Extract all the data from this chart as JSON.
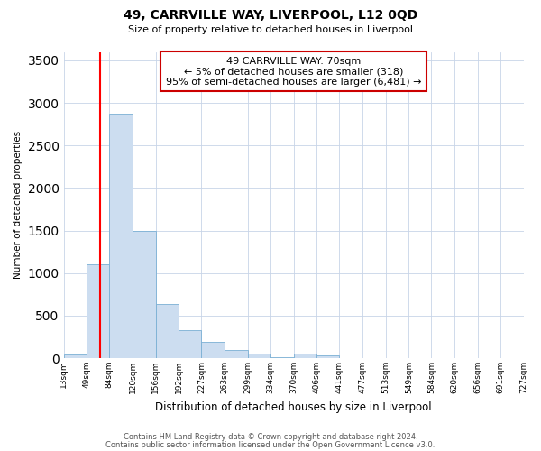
{
  "title": "49, CARRVILLE WAY, LIVERPOOL, L12 0QD",
  "subtitle": "Size of property relative to detached houses in Liverpool",
  "xlabel": "Distribution of detached houses by size in Liverpool",
  "ylabel": "Number of detached properties",
  "bar_color": "#ccddf0",
  "bar_edge_color": "#7aafd4",
  "red_line_x": 70,
  "annotation_title": "49 CARRVILLE WAY: 70sqm",
  "annotation_line1": "← 5% of detached houses are smaller (318)",
  "annotation_line2": "95% of semi-detached houses are larger (6,481) →",
  "annotation_box_color": "#ffffff",
  "annotation_box_edge_color": "#cc0000",
  "footer1": "Contains HM Land Registry data © Crown copyright and database right 2024.",
  "footer2": "Contains public sector information licensed under the Open Government Licence v3.0.",
  "bin_edges": [
    13,
    49,
    84,
    120,
    156,
    192,
    227,
    263,
    299,
    334,
    370,
    406,
    441,
    477,
    513,
    549,
    584,
    620,
    656,
    691,
    727
  ],
  "bin_labels": [
    "13sqm",
    "49sqm",
    "84sqm",
    "120sqm",
    "156sqm",
    "192sqm",
    "227sqm",
    "263sqm",
    "299sqm",
    "334sqm",
    "370sqm",
    "406sqm",
    "441sqm",
    "477sqm",
    "513sqm",
    "549sqm",
    "584sqm",
    "620sqm",
    "656sqm",
    "691sqm",
    "727sqm"
  ],
  "bar_heights": [
    40,
    1100,
    2870,
    1490,
    635,
    330,
    195,
    100,
    50,
    10,
    50,
    30,
    5,
    2,
    2,
    2,
    1,
    1,
    1,
    1
  ],
  "ylim": [
    0,
    3600
  ],
  "yticks": [
    0,
    500,
    1000,
    1500,
    2000,
    2500,
    3000,
    3500
  ]
}
